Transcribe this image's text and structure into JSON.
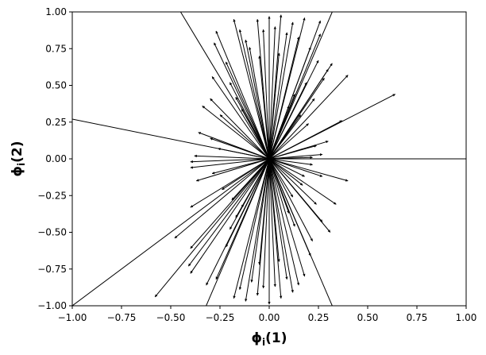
{
  "chart_data": {
    "type": "quiver",
    "title": "",
    "xlabel": {
      "main": "ϕ",
      "sub": "i",
      "suffix": "(1)"
    },
    "ylabel": {
      "main": "ϕ",
      "sub": "i",
      "suffix": "(2)"
    },
    "xlim": [
      -1.0,
      1.0
    ],
    "ylim": [
      -1.0,
      1.0
    ],
    "xticks": [
      -1.0,
      -0.75,
      -0.5,
      -0.25,
      0.0,
      0.25,
      0.5,
      0.75,
      1.0
    ],
    "yticks": [
      -1.0,
      -0.75,
      -0.5,
      -0.25,
      0.0,
      0.25,
      0.5,
      0.75,
      1.0
    ],
    "xtick_labels": [
      "−1.00",
      "−0.75",
      "−0.50",
      "−0.25",
      "0.00",
      "0.25",
      "0.50",
      "0.75",
      "1.00"
    ],
    "ytick_labels": [
      "−1.00",
      "−0.75",
      "−0.50",
      "−0.25",
      "0.00",
      "0.25",
      "0.50",
      "0.75",
      "1.00"
    ],
    "grid": false,
    "origin": [
      0.0,
      0.0
    ],
    "color": "#000000",
    "vectors": [
      [
        1.0,
        0.0
      ],
      [
        -1.0,
        0.27
      ],
      [
        -1.0,
        -1.0
      ],
      [
        -0.45,
        1.0
      ],
      [
        0.32,
        1.0
      ],
      [
        0.32,
        -1.0
      ],
      [
        -0.32,
        -1.0
      ],
      [
        0.64,
        0.44
      ],
      [
        0.4,
        0.57
      ],
      [
        0.37,
        0.26
      ],
      [
        0.4,
        -0.15
      ],
      [
        0.34,
        -0.31
      ],
      [
        0.3,
        0.12
      ],
      [
        0.27,
        0.03
      ],
      [
        0.27,
        -0.12
      ],
      [
        -0.27,
        0.87
      ],
      [
        -0.28,
        0.79
      ],
      [
        -0.29,
        0.56
      ],
      [
        -0.3,
        0.41
      ],
      [
        -0.34,
        0.36
      ],
      [
        -0.38,
        0.02
      ],
      [
        -0.4,
        -0.02
      ],
      [
        -0.4,
        -0.06
      ],
      [
        -0.37,
        -0.15
      ],
      [
        -0.4,
        -0.33
      ],
      [
        -0.48,
        -0.54
      ],
      [
        -0.4,
        -0.61
      ],
      [
        -0.41,
        -0.73
      ],
      [
        -0.4,
        -0.78
      ],
      [
        -0.58,
        -0.94
      ],
      [
        -0.32,
        -0.86
      ],
      [
        -0.27,
        -0.82
      ],
      [
        0.21,
        -0.66
      ],
      [
        0.31,
        -0.5
      ],
      [
        0.24,
        -0.31
      ],
      [
        0.28,
        0.55
      ],
      [
        0.3,
        0.61
      ],
      [
        0.32,
        0.65
      ],
      [
        0.25,
        0.67
      ],
      [
        0.21,
        0.76
      ],
      [
        0.26,
        0.85
      ],
      [
        0.26,
        0.94
      ],
      [
        -0.36,
        0.18
      ],
      [
        -0.25,
        0.3
      ],
      [
        0.16,
        0.3
      ],
      [
        0.2,
        0.24
      ],
      [
        0.24,
        0.09
      ],
      [
        0.22,
        0.01
      ],
      [
        0.22,
        -0.04
      ],
      [
        0.18,
        -0.12
      ],
      [
        0.17,
        -0.18
      ],
      [
        0.12,
        -0.26
      ],
      [
        -0.18,
        0.95
      ],
      [
        -0.15,
        0.88
      ],
      [
        -0.12,
        0.81
      ],
      [
        -0.1,
        0.76
      ],
      [
        -0.06,
        0.95
      ],
      [
        -0.03,
        0.88
      ],
      [
        0.0,
        0.97
      ],
      [
        0.03,
        0.9
      ],
      [
        0.06,
        0.98
      ],
      [
        0.09,
        0.86
      ],
      [
        0.12,
        0.93
      ],
      [
        0.15,
        0.83
      ],
      [
        0.18,
        0.96
      ],
      [
        -0.18,
        -0.95
      ],
      [
        -0.15,
        -0.89
      ],
      [
        -0.12,
        -0.97
      ],
      [
        -0.09,
        -0.84
      ],
      [
        -0.06,
        -0.93
      ],
      [
        -0.03,
        -0.88
      ],
      [
        0.0,
        -0.99
      ],
      [
        0.03,
        -0.87
      ],
      [
        0.06,
        -0.95
      ],
      [
        0.09,
        -0.82
      ],
      [
        0.12,
        -0.91
      ],
      [
        0.15,
        -0.86
      ],
      [
        0.18,
        -0.8
      ],
      [
        -0.22,
        0.66
      ],
      [
        -0.2,
        0.52
      ],
      [
        -0.17,
        0.42
      ],
      [
        -0.14,
        0.34
      ],
      [
        -0.22,
        -0.6
      ],
      [
        -0.2,
        -0.48
      ],
      [
        -0.17,
        -0.4
      ],
      [
        -0.14,
        -0.33
      ],
      [
        0.13,
        0.44
      ],
      [
        0.1,
        0.36
      ],
      [
        0.13,
        -0.46
      ],
      [
        0.1,
        -0.37
      ],
      [
        -0.3,
        0.14
      ],
      [
        -0.26,
        0.07
      ],
      [
        -0.29,
        -0.1
      ],
      [
        -0.24,
        -0.21
      ],
      [
        -0.19,
        -0.28
      ],
      [
        0.23,
        0.41
      ],
      [
        0.19,
        0.52
      ],
      [
        0.27,
        -0.43
      ],
      [
        0.22,
        -0.56
      ],
      [
        -0.05,
        0.7
      ],
      [
        0.05,
        0.72
      ],
      [
        -0.05,
        -0.72
      ],
      [
        0.05,
        -0.7
      ]
    ]
  }
}
